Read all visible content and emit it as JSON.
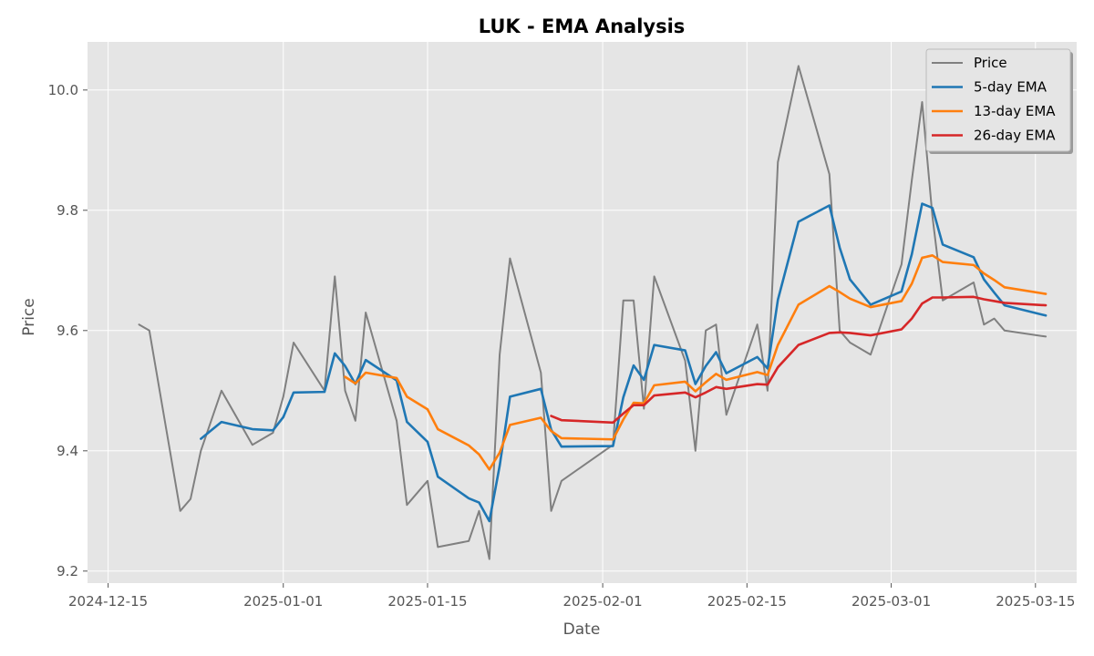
{
  "chart_data": {
    "type": "line",
    "title": "LUK - EMA Analysis",
    "xlabel": "Date",
    "ylabel": "Price",
    "xlim": [
      "2024-12-13",
      "2025-03-19"
    ],
    "ylim": [
      9.18,
      10.08
    ],
    "x_ticks": [
      "2024-12-15",
      "2025-01-01",
      "2025-01-15",
      "2025-02-01",
      "2025-02-15",
      "2025-03-01",
      "2025-03-15"
    ],
    "y_ticks": [
      9.2,
      9.4,
      9.6,
      9.8,
      10.0
    ],
    "y_tick_labels": [
      "9.2",
      "9.4",
      "9.6",
      "9.8",
      "10.0"
    ],
    "grid": true,
    "legend_position": "top-right",
    "x": [
      "2024-12-18",
      "2024-12-19",
      "2024-12-22",
      "2024-12-23",
      "2024-12-24",
      "2024-12-26",
      "2024-12-29",
      "2024-12-31",
      "2025-01-01",
      "2025-01-02",
      "2025-01-05",
      "2025-01-06",
      "2025-01-07",
      "2025-01-08",
      "2025-01-09",
      "2025-01-12",
      "2025-01-13",
      "2025-01-15",
      "2025-01-16",
      "2025-01-19",
      "2025-01-20",
      "2025-01-21",
      "2025-01-22",
      "2025-01-23",
      "2025-01-26",
      "2025-01-27",
      "2025-01-28",
      "2025-02-02",
      "2025-02-03",
      "2025-02-04",
      "2025-02-05",
      "2025-02-06",
      "2025-02-09",
      "2025-02-10",
      "2025-02-11",
      "2025-02-12",
      "2025-02-13",
      "2025-02-16",
      "2025-02-17",
      "2025-02-18",
      "2025-02-20",
      "2025-02-23",
      "2025-02-24",
      "2025-02-25",
      "2025-02-27",
      "2025-03-02",
      "2025-03-03",
      "2025-03-04",
      "2025-03-05",
      "2025-03-06",
      "2025-03-09",
      "2025-03-10",
      "2025-03-11",
      "2025-03-12",
      "2025-03-16"
    ],
    "series": [
      {
        "name": "Price",
        "color": "#808080",
        "values": [
          9.61,
          9.6,
          9.3,
          9.32,
          9.4,
          9.5,
          9.41,
          9.43,
          9.49,
          9.58,
          9.5,
          9.69,
          9.5,
          9.45,
          9.63,
          9.45,
          9.31,
          9.35,
          9.24,
          9.25,
          9.3,
          9.22,
          9.56,
          9.72,
          9.53,
          9.3,
          9.35,
          9.41,
          9.65,
          9.65,
          9.47,
          9.69,
          9.55,
          9.4,
          9.6,
          9.61,
          9.46,
          9.61,
          9.5,
          9.88,
          10.04,
          9.86,
          9.6,
          9.58,
          9.56,
          9.71,
          9.85,
          9.98,
          9.79,
          9.65,
          9.68,
          9.61,
          9.62,
          9.6,
          9.59
        ]
      },
      {
        "name": "5-day EMA",
        "color": "#1f77b4",
        "values": [
          null,
          null,
          null,
          null,
          9.42,
          9.448,
          9.436,
          9.434,
          9.456,
          9.497,
          9.498,
          9.562,
          9.541,
          9.511,
          9.551,
          9.517,
          9.448,
          9.415,
          9.357,
          9.321,
          9.314,
          9.283,
          9.375,
          9.49,
          9.503,
          9.435,
          9.407,
          9.408,
          9.489,
          9.542,
          9.518,
          9.576,
          9.567,
          9.511,
          9.541,
          9.564,
          9.529,
          9.556,
          9.537,
          9.651,
          9.781,
          9.808,
          9.738,
          9.685,
          9.643,
          9.665,
          9.727,
          9.811,
          9.804,
          9.743,
          9.722,
          9.685,
          9.663,
          9.642,
          9.625
        ]
      },
      {
        "name": "13-day EMA",
        "color": "#ff7f0e",
        "values": [
          null,
          null,
          null,
          null,
          null,
          null,
          null,
          null,
          null,
          null,
          null,
          null,
          9.523,
          9.512,
          9.53,
          9.521,
          9.49,
          9.469,
          9.436,
          9.409,
          9.394,
          9.369,
          9.397,
          9.443,
          9.455,
          9.433,
          9.421,
          9.419,
          9.452,
          9.48,
          9.479,
          9.509,
          9.515,
          9.499,
          9.514,
          9.528,
          9.518,
          9.531,
          9.526,
          9.576,
          9.643,
          9.674,
          9.664,
          9.653,
          9.639,
          9.649,
          9.678,
          9.721,
          9.725,
          9.714,
          9.709,
          9.695,
          9.684,
          9.672,
          9.661
        ]
      },
      {
        "name": "26-day EMA",
        "color": "#d62728",
        "values": [
          null,
          null,
          null,
          null,
          null,
          null,
          null,
          null,
          null,
          null,
          null,
          null,
          null,
          null,
          null,
          null,
          null,
          null,
          null,
          null,
          null,
          null,
          null,
          null,
          null,
          9.458,
          9.451,
          9.447,
          9.462,
          9.476,
          9.476,
          9.492,
          9.497,
          9.489,
          9.497,
          9.506,
          9.503,
          9.511,
          9.51,
          9.539,
          9.576,
          9.596,
          9.597,
          9.596,
          9.592,
          9.602,
          9.62,
          9.645,
          9.655,
          9.655,
          9.656,
          9.652,
          9.649,
          9.646,
          9.642
        ]
      }
    ]
  }
}
